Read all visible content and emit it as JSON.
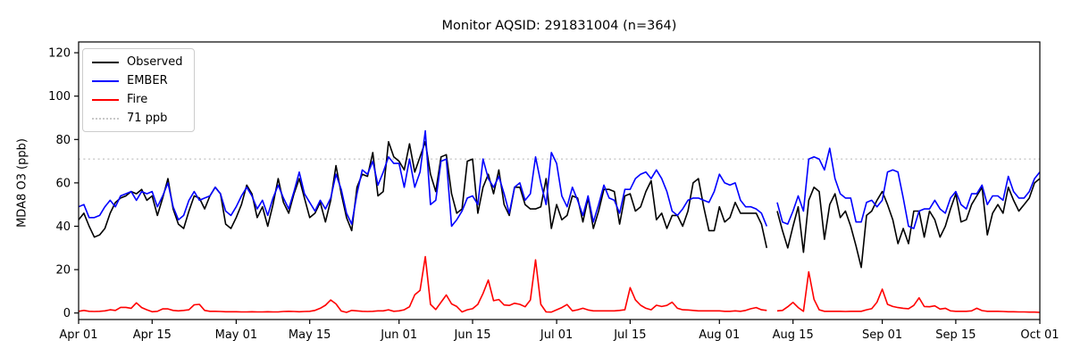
{
  "figure": {
    "title": "Monitor AQSID: 291831004 (n=364)",
    "ylabel": "MDA8 O3 (ppb)",
    "background": "#ffffff"
  },
  "legend": {
    "position": "upper-left",
    "items": [
      {
        "label": "Observed",
        "color": "#000000",
        "style": "solid"
      },
      {
        "label": "EMBER",
        "color": "#0000ff",
        "style": "solid"
      },
      {
        "label": "Fire",
        "color": "#ff0000",
        "style": "solid"
      },
      {
        "label": "71 ppb",
        "color": "#c8c8c8",
        "style": "dotted"
      }
    ]
  },
  "chart_data": {
    "type": "line",
    "title": "Monitor AQSID: 291831004 (n=364)",
    "xlabel": "",
    "ylabel": "MDA8 O3 (ppb)",
    "ylim": [
      -3,
      125
    ],
    "yticks": [
      0,
      20,
      40,
      60,
      80,
      100,
      120
    ],
    "grid": false,
    "x_start_day": 0,
    "x_end_day": 183,
    "x_tick_days": [
      0,
      14,
      30,
      44,
      61,
      75,
      91,
      105,
      122,
      136,
      153,
      167,
      183
    ],
    "x_tick_labels": [
      "Apr 01",
      "Apr 15",
      "May 01",
      "May 15",
      "Jun 01",
      "Jun 15",
      "Jul 01",
      "Jul 15",
      "Aug 01",
      "Aug 15",
      "Sep 01",
      "Sep 15",
      "Oct 01"
    ],
    "threshold": {
      "value": 71,
      "label": "71 ppb",
      "color": "#c8c8c8"
    },
    "note": "values are daily MDA8 O3 in ppb estimated from plot; null = missing day (gap near Aug 11)",
    "series": [
      {
        "name": "Observed",
        "color": "#000000",
        "values": [
          43,
          46,
          40,
          35,
          36,
          39,
          46,
          51,
          53,
          54,
          56,
          55,
          57,
          52,
          54,
          45,
          53,
          62,
          48,
          41,
          39,
          47,
          54,
          53,
          48,
          54,
          58,
          55,
          41,
          39,
          44,
          50,
          59,
          55,
          44,
          49,
          40,
          50,
          62,
          51,
          46,
          55,
          62,
          53,
          44,
          46,
          51,
          42,
          52,
          68,
          55,
          44,
          38,
          58,
          64,
          63,
          74,
          54,
          56,
          79,
          72,
          70,
          66,
          78,
          65,
          72,
          79,
          64,
          56,
          72,
          73,
          55,
          46,
          48,
          70,
          71,
          46,
          58,
          64,
          55,
          66,
          50,
          45,
          58,
          58,
          50,
          48,
          48,
          49,
          62,
          39,
          50,
          43,
          45,
          54,
          53,
          42,
          53,
          39,
          47,
          57,
          57,
          56,
          41,
          54,
          55,
          47,
          49,
          56,
          61,
          43,
          46,
          39,
          45,
          45,
          40,
          47,
          60,
          62,
          49,
          38,
          38,
          49,
          42,
          44,
          51,
          46,
          46,
          46,
          46,
          41,
          30,
          null,
          47,
          38,
          30,
          40,
          49,
          28,
          52,
          58,
          56,
          34,
          50,
          55,
          44,
          47,
          40,
          31,
          21,
          45,
          47,
          52,
          56,
          50,
          43,
          32,
          39,
          32,
          47,
          47,
          35,
          47,
          43,
          35,
          40,
          48,
          55,
          42,
          43,
          50,
          54,
          58,
          36,
          46,
          50,
          46,
          58,
          52,
          47,
          50,
          53,
          60,
          62
        ]
      },
      {
        "name": "EMBER",
        "color": "#0000ff",
        "values": [
          49,
          50,
          44,
          44,
          45,
          49,
          52,
          49,
          54,
          55,
          56,
          52,
          56,
          55,
          56,
          49,
          54,
          60,
          49,
          43,
          45,
          52,
          56,
          52,
          53,
          54,
          58,
          55,
          47,
          45,
          49,
          54,
          58,
          54,
          48,
          52,
          45,
          53,
          59,
          53,
          48,
          56,
          65,
          55,
          51,
          47,
          52,
          48,
          53,
          64,
          57,
          46,
          41,
          55,
          66,
          64,
          70,
          59,
          65,
          72,
          69,
          69,
          58,
          71,
          58,
          65,
          84,
          50,
          52,
          70,
          71,
          40,
          43,
          47,
          53,
          54,
          50,
          71,
          62,
          58,
          63,
          55,
          46,
          58,
          60,
          52,
          55,
          72,
          60,
          50,
          74,
          69,
          54,
          49,
          58,
          52,
          45,
          54,
          42,
          50,
          59,
          53,
          52,
          46,
          57,
          57,
          62,
          64,
          65,
          62,
          66,
          62,
          56,
          47,
          45,
          48,
          52,
          53,
          53,
          52,
          51,
          56,
          64,
          60,
          59,
          60,
          52,
          49,
          49,
          48,
          46,
          40,
          null,
          51,
          42,
          41,
          47,
          54,
          47,
          71,
          72,
          71,
          66,
          76,
          62,
          55,
          53,
          53,
          42,
          42,
          51,
          52,
          49,
          52,
          65,
          66,
          65,
          53,
          40,
          39,
          47,
          48,
          48,
          52,
          48,
          46,
          53,
          56,
          50,
          48,
          55,
          55,
          59,
          50,
          54,
          54,
          52,
          63,
          56,
          53,
          53,
          56,
          62,
          65
        ]
      },
      {
        "name": "Fire",
        "color": "#ff0000",
        "values": [
          0.8,
          1.2,
          0.8,
          0.7,
          0.8,
          1.0,
          1.5,
          1.2,
          2.6,
          2.6,
          2.2,
          4.7,
          2.5,
          1.5,
          0.6,
          0.8,
          1.9,
          1.9,
          1.2,
          1.0,
          1.2,
          1.5,
          3.8,
          4.0,
          1.2,
          0.8,
          0.8,
          0.7,
          0.6,
          0.6,
          0.6,
          0.5,
          0.5,
          0.6,
          0.5,
          0.5,
          0.6,
          0.5,
          0.5,
          0.7,
          0.8,
          0.7,
          0.6,
          0.7,
          0.8,
          1.2,
          2.2,
          3.6,
          6.0,
          4.2,
          0.9,
          0.3,
          1.2,
          1.0,
          0.8,
          0.7,
          0.8,
          1.0,
          1.0,
          1.5,
          0.8,
          1.0,
          1.5,
          2.9,
          8.4,
          10.4,
          26.0,
          4.0,
          1.6,
          5.0,
          8.3,
          4.2,
          3.0,
          0.5,
          1.5,
          2.0,
          4.0,
          9.0,
          15.2,
          5.7,
          6.2,
          3.7,
          3.5,
          4.5,
          4.0,
          2.9,
          6.0,
          24.5,
          4.0,
          0.5,
          0.4,
          1.5,
          2.5,
          3.9,
          1.0,
          1.5,
          2.2,
          1.4,
          1.0,
          1.0,
          1.0,
          1.0,
          1.0,
          1.2,
          1.5,
          11.7,
          6.0,
          3.6,
          2.2,
          1.5,
          3.6,
          3.0,
          3.5,
          5.0,
          2.2,
          1.5,
          1.4,
          1.2,
          1.0,
          1.0,
          1.0,
          1.0,
          1.0,
          0.8,
          0.8,
          1.0,
          0.8,
          1.2,
          2.0,
          2.5,
          1.5,
          1.2,
          null,
          1.0,
          1.2,
          2.9,
          4.9,
          2.5,
          0.8,
          19.0,
          6.3,
          1.5,
          0.8,
          0.8,
          0.8,
          0.8,
          0.7,
          0.8,
          0.8,
          0.8,
          1.5,
          2.0,
          5.0,
          11.0,
          4.0,
          3.0,
          2.5,
          2.2,
          2.0,
          3.5,
          7.0,
          3.0,
          2.9,
          3.3,
          1.8,
          2.2,
          1.0,
          0.8,
          0.8,
          0.8,
          1.0,
          2.2,
          1.1,
          0.8,
          0.8,
          0.8,
          0.7,
          0.6,
          0.6,
          0.5,
          0.5,
          0.4,
          0.4,
          0.3
        ]
      }
    ]
  }
}
